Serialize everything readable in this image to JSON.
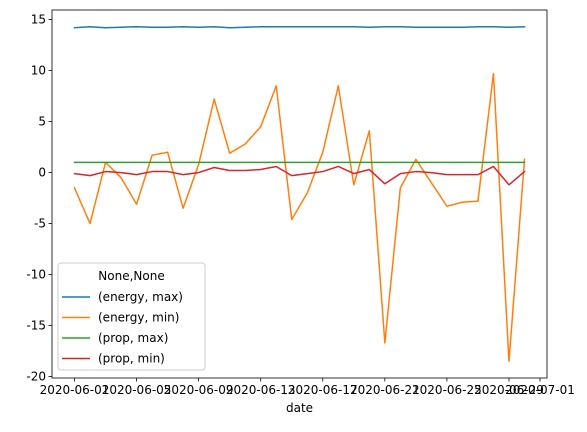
{
  "chart_data": {
    "type": "line",
    "xlabel": "date",
    "ylabel": "",
    "xlim": [
      "2020-06-01",
      "2020-07-01"
    ],
    "ylim": [
      -20,
      15
    ],
    "x_ticks": [
      "2020-06-01",
      "2020-06-05",
      "2020-06-09",
      "2020-06-13",
      "2020-06-17",
      "2020-06-21",
      "2020-06-25",
      "2020-06-29",
      "2020-07-01"
    ],
    "y_ticks": [
      -20,
      -15,
      -10,
      -5,
      0,
      5,
      10,
      15
    ],
    "grid": false,
    "legend": {
      "title": "None,None",
      "placement": "lower-left"
    },
    "x": [
      "2020-06-01",
      "2020-06-02",
      "2020-06-03",
      "2020-06-04",
      "2020-06-05",
      "2020-06-06",
      "2020-06-07",
      "2020-06-08",
      "2020-06-09",
      "2020-06-10",
      "2020-06-11",
      "2020-06-12",
      "2020-06-13",
      "2020-06-14",
      "2020-06-15",
      "2020-06-16",
      "2020-06-17",
      "2020-06-18",
      "2020-06-19",
      "2020-06-20",
      "2020-06-21",
      "2020-06-22",
      "2020-06-23",
      "2020-06-24",
      "2020-06-25",
      "2020-06-26",
      "2020-06-27",
      "2020-06-28",
      "2020-06-29",
      "2020-06-30"
    ],
    "series": [
      {
        "name": "(energy, max)",
        "color": "#1f77b4",
        "values": [
          14.2,
          14.3,
          14.2,
          14.25,
          14.3,
          14.25,
          14.25,
          14.3,
          14.25,
          14.3,
          14.2,
          14.25,
          14.3,
          14.3,
          14.3,
          14.3,
          14.3,
          14.3,
          14.3,
          14.25,
          14.3,
          14.3,
          14.25,
          14.25,
          14.25,
          14.25,
          14.3,
          14.3,
          14.25,
          14.3
        ]
      },
      {
        "name": "(energy, min)",
        "color": "#ff7f0e",
        "values": [
          -1.5,
          -5.0,
          1.0,
          -0.5,
          -3.1,
          1.7,
          2.0,
          -3.5,
          0.8,
          7.2,
          1.9,
          2.8,
          4.5,
          8.5,
          -4.6,
          -2.0,
          2.0,
          8.5,
          -1.2,
          4.1,
          -16.7,
          -1.5,
          1.3,
          -1.0,
          -3.3,
          -2.9,
          -2.8,
          9.7,
          -18.5,
          1.3
        ]
      },
      {
        "name": "(prop, max)",
        "color": "#2ca02c",
        "values": [
          1,
          1,
          1,
          1,
          1,
          1,
          1,
          1,
          1,
          1,
          1,
          1,
          1,
          1,
          1,
          1,
          1,
          1,
          1,
          1,
          1,
          1,
          1,
          1,
          1,
          1,
          1,
          1,
          1,
          1
        ]
      },
      {
        "name": "(prop, min)",
        "color": "#d62728",
        "values": [
          -0.1,
          -0.3,
          0.1,
          0.0,
          -0.2,
          0.1,
          0.1,
          -0.2,
          0.0,
          0.5,
          0.2,
          0.2,
          0.3,
          0.6,
          -0.3,
          -0.1,
          0.1,
          0.6,
          -0.1,
          0.3,
          -1.1,
          -0.1,
          0.1,
          0.0,
          -0.2,
          -0.2,
          -0.2,
          0.6,
          -1.2,
          0.1
        ]
      }
    ]
  }
}
